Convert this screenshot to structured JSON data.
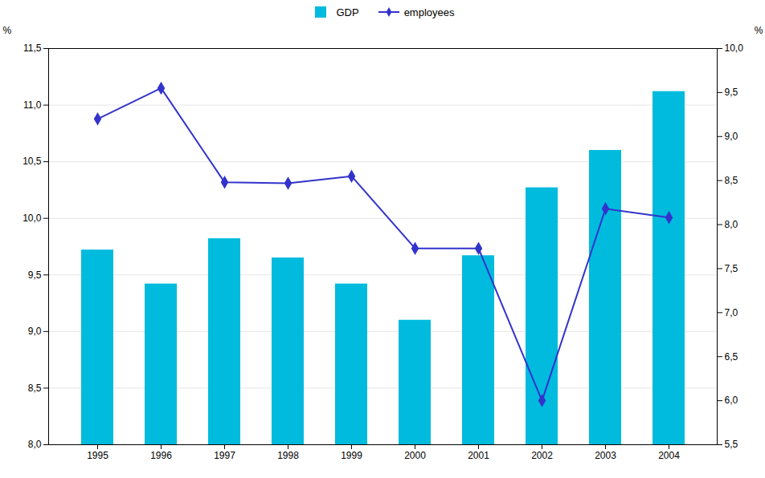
{
  "chart_data": {
    "type": "bar",
    "categories": [
      "1995",
      "1996",
      "1997",
      "1998",
      "1999",
      "2000",
      "2001",
      "2002",
      "2003",
      "2004"
    ],
    "series": [
      {
        "name": "GDP",
        "type": "bar",
        "color": "#00bbdd",
        "values": [
          9.72,
          9.42,
          9.82,
          9.65,
          9.42,
          9.1,
          9.67,
          10.27,
          10.6,
          11.12
        ]
      },
      {
        "name": "employees",
        "type": "line",
        "axis": "y2",
        "color": "#3333cc",
        "marker": "diamond",
        "values": [
          9.2,
          9.55,
          8.48,
          8.47,
          8.55,
          7.73,
          7.73,
          6.0,
          8.18,
          8.08
        ]
      }
    ],
    "ylim": [
      8.0,
      11.5
    ],
    "yticks": [
      {
        "value": 8.0,
        "label": "8,0"
      },
      {
        "value": 8.5,
        "label": "8,5"
      },
      {
        "value": 9.0,
        "label": "9,0"
      },
      {
        "value": 9.5,
        "label": "9,5"
      },
      {
        "value": 10.0,
        "label": "10,0"
      },
      {
        "value": 10.5,
        "label": "10,5"
      },
      {
        "value": 11.0,
        "label": "11,0"
      },
      {
        "value": 11.5,
        "label": "11,5"
      }
    ],
    "y2lim": [
      5.5,
      10.0
    ],
    "y2ticks": [
      {
        "value": 5.5,
        "label": "5,5"
      },
      {
        "value": 6.0,
        "label": "6,0"
      },
      {
        "value": 6.5,
        "label": "6,5"
      },
      {
        "value": 7.0,
        "label": "7,0"
      },
      {
        "value": 7.5,
        "label": "7,5"
      },
      {
        "value": 8.0,
        "label": "8,0"
      },
      {
        "value": 8.5,
        "label": "8,5"
      },
      {
        "value": 9.0,
        "label": "9,0"
      },
      {
        "value": 9.5,
        "label": "9,5"
      },
      {
        "value": 10.0,
        "label": "10,0"
      }
    ],
    "ylabel": "%",
    "y2label": "%",
    "grid": true,
    "legend": "top"
  }
}
